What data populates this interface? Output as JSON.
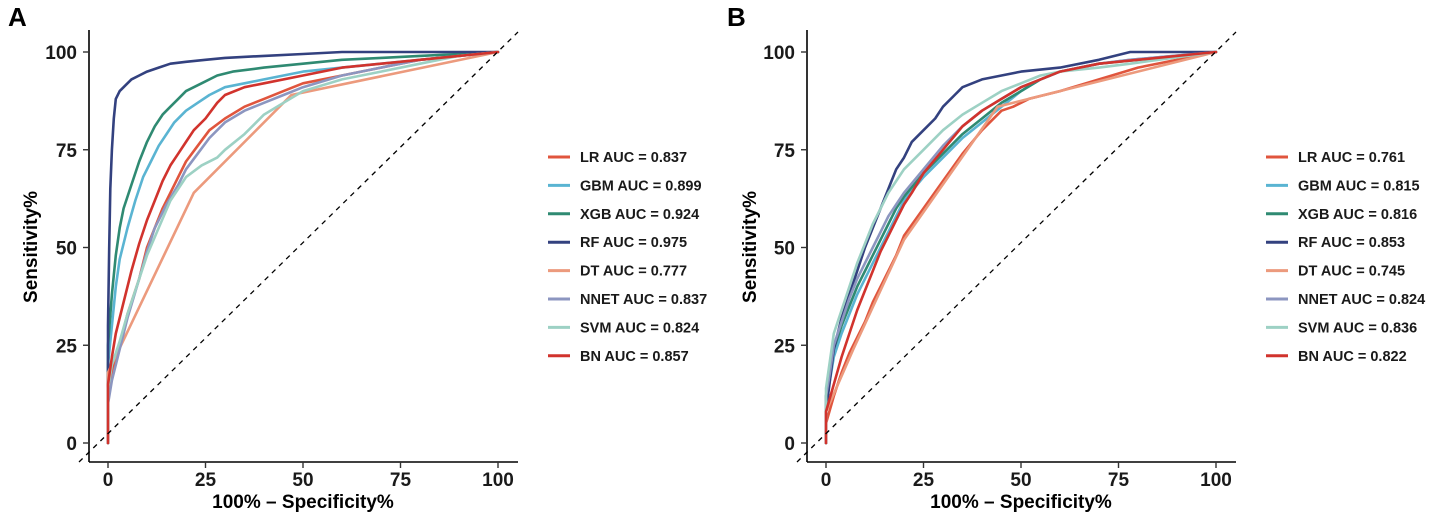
{
  "chart_data": [
    {
      "type": "line",
      "panel_label": "A",
      "xlabel": "100% – Specificity%",
      "ylabel": "Sensitivity%",
      "xlim": [
        0,
        100
      ],
      "ylim": [
        0,
        100
      ],
      "xticks": [
        0,
        25,
        50,
        75,
        100
      ],
      "yticks": [
        0,
        25,
        50,
        75,
        100
      ],
      "reference_line": "diagonal, dashed",
      "legend_position": "right",
      "series": [
        {
          "name": "LR",
          "label": "LR AUC = 0.837",
          "color": "#e0553d",
          "x": [
            0,
            0,
            1,
            3,
            5,
            8,
            10,
            12,
            14,
            16,
            18,
            20,
            23,
            26,
            30,
            35,
            40,
            45,
            50,
            60,
            70,
            80,
            90,
            100
          ],
          "y": [
            0,
            12,
            18,
            25,
            33,
            42,
            50,
            55,
            60,
            64,
            68,
            72,
            76,
            80,
            83,
            86,
            88,
            90,
            92,
            94,
            96,
            98,
            99,
            100
          ]
        },
        {
          "name": "GBM",
          "label": "GBM AUC = 0.899",
          "color": "#5ab4d2",
          "x": [
            0,
            0,
            1,
            2,
            3,
            5,
            7,
            9,
            11,
            13,
            15,
            17,
            20,
            23,
            26,
            30,
            35,
            40,
            50,
            60,
            70,
            80,
            90,
            100
          ],
          "y": [
            0,
            20,
            30,
            40,
            47,
            55,
            62,
            68,
            72,
            76,
            79,
            82,
            85,
            87,
            89,
            91,
            92,
            93,
            95,
            96,
            97,
            98,
            99,
            100
          ]
        },
        {
          "name": "XGB",
          "label": "XGB AUC = 0.924",
          "color": "#2f8a72",
          "x": [
            0,
            0,
            1,
            2,
            3,
            4,
            6,
            8,
            10,
            12,
            14,
            16,
            18,
            20,
            24,
            28,
            32,
            40,
            50,
            60,
            70,
            80,
            90,
            100
          ],
          "y": [
            0,
            25,
            38,
            48,
            55,
            60,
            66,
            72,
            77,
            81,
            84,
            86,
            88,
            90,
            92,
            94,
            95,
            96,
            97,
            98,
            98.5,
            99,
            99.5,
            100
          ]
        },
        {
          "name": "RF",
          "label": "RF AUC = 0.975",
          "color": "#33417f",
          "x": [
            0,
            0,
            0.3,
            0.6,
            1,
            1.5,
            2,
            3,
            4,
            5,
            6,
            8,
            10,
            13,
            16,
            20,
            25,
            30,
            40,
            50,
            60,
            70,
            85,
            100
          ],
          "y": [
            0,
            30,
            50,
            65,
            75,
            83,
            88,
            90,
            91,
            92,
            93,
            94,
            95,
            96,
            97,
            97.5,
            98,
            98.5,
            99,
            99.5,
            100,
            100,
            100,
            100
          ]
        },
        {
          "name": "DT",
          "label": "DT AUC = 0.777",
          "color": "#ec9a7d",
          "x": [
            0,
            0,
            22,
            47,
            100
          ],
          "y": [
            0,
            18,
            64,
            89,
            100
          ]
        },
        {
          "name": "NNET",
          "label": "NNET AUC = 0.837",
          "color": "#8c96c0",
          "x": [
            0,
            0,
            1,
            3,
            5,
            8,
            10,
            12,
            15,
            18,
            20,
            23,
            26,
            30,
            35,
            40,
            45,
            50,
            60,
            70,
            80,
            90,
            100
          ],
          "y": [
            0,
            10,
            16,
            24,
            32,
            42,
            49,
            55,
            61,
            66,
            70,
            74,
            78,
            82,
            85,
            87,
            89,
            91,
            94,
            96,
            98,
            99,
            100
          ]
        },
        {
          "name": "SVM",
          "label": "SVM AUC = 0.824",
          "color": "#9dd1c4",
          "x": [
            0,
            0,
            1,
            3,
            5,
            8,
            10,
            13,
            16,
            20,
            24,
            28,
            30,
            35,
            40,
            45,
            50,
            60,
            70,
            80,
            90,
            100
          ],
          "y": [
            0,
            14,
            20,
            26,
            33,
            42,
            48,
            55,
            62,
            68,
            71,
            73,
            75,
            79,
            84,
            87,
            90,
            93,
            95,
            97,
            99,
            100
          ]
        },
        {
          "name": "BN",
          "label": "BN AUC = 0.857",
          "color": "#d1332d",
          "x": [
            0,
            0,
            1,
            2,
            4,
            6,
            8,
            10,
            12,
            14,
            16,
            18,
            20,
            22,
            25,
            28,
            30,
            35,
            40,
            50,
            60,
            70,
            80,
            90,
            100
          ],
          "y": [
            0,
            15,
            22,
            28,
            36,
            44,
            51,
            57,
            62,
            67,
            71,
            74,
            77,
            80,
            83,
            87,
            89,
            91,
            92,
            94,
            96,
            97,
            98,
            99,
            100
          ]
        }
      ]
    },
    {
      "type": "line",
      "panel_label": "B",
      "xlabel": "100% – Specificity%",
      "ylabel": "Sensitivity%",
      "xlim": [
        0,
        100
      ],
      "ylim": [
        0,
        100
      ],
      "xticks": [
        0,
        25,
        50,
        75,
        100
      ],
      "yticks": [
        0,
        25,
        50,
        75,
        100
      ],
      "reference_line": "diagonal, dashed",
      "legend_position": "right",
      "series": [
        {
          "name": "LR",
          "label": "LR AUC = 0.761",
          "color": "#e0553d",
          "x": [
            0,
            0,
            2,
            4,
            6,
            8,
            10,
            12,
            15,
            18,
            20,
            25,
            30,
            35,
            40,
            45,
            48,
            52,
            60,
            70,
            80,
            100
          ],
          "y": [
            0,
            5,
            12,
            18,
            23,
            27,
            31,
            36,
            42,
            48,
            53,
            60,
            67,
            74,
            80,
            85,
            86,
            88,
            90,
            93,
            96,
            100
          ]
        },
        {
          "name": "GBM",
          "label": "GBM AUC = 0.815",
          "color": "#5ab4d2",
          "x": [
            0,
            0,
            1,
            2,
            4,
            6,
            8,
            10,
            12,
            14,
            16,
            18,
            20,
            25,
            30,
            35,
            40,
            45,
            50,
            55,
            60,
            70,
            78,
            100
          ],
          "y": [
            0,
            10,
            16,
            22,
            28,
            33,
            38,
            42,
            46,
            50,
            54,
            58,
            62,
            68,
            73,
            78,
            82,
            86,
            90,
            93,
            95,
            97,
            98,
            100
          ]
        },
        {
          "name": "XGB",
          "label": "XGB AUC = 0.816",
          "color": "#2f8a72",
          "x": [
            0,
            0,
            1,
            2,
            4,
            6,
            8,
            10,
            12,
            14,
            16,
            18,
            20,
            25,
            30,
            35,
            40,
            45,
            50,
            55,
            60,
            70,
            100
          ],
          "y": [
            0,
            12,
            18,
            24,
            30,
            35,
            40,
            44,
            48,
            52,
            56,
            60,
            63,
            69,
            74,
            79,
            83,
            87,
            90,
            93,
            95,
            97,
            100
          ]
        },
        {
          "name": "RF",
          "label": "RF AUC = 0.853",
          "color": "#33417f",
          "x": [
            0,
            0,
            1,
            2,
            4,
            6,
            8,
            10,
            12,
            14,
            16,
            18,
            20,
            22,
            25,
            28,
            30,
            33,
            35,
            40,
            45,
            50,
            60,
            70,
            78,
            100
          ],
          "y": [
            0,
            8,
            16,
            24,
            32,
            38,
            44,
            50,
            55,
            60,
            65,
            70,
            73,
            77,
            80,
            83,
            86,
            89,
            91,
            93,
            94,
            95,
            96,
            98,
            100,
            100
          ]
        },
        {
          "name": "DT",
          "label": "DT AUC = 0.745",
          "color": "#ec9a7d",
          "x": [
            0,
            0,
            7,
            20,
            44,
            100
          ],
          "y": [
            0,
            8,
            24,
            52,
            86,
            100
          ]
        },
        {
          "name": "NNET",
          "label": "NNET AUC = 0.824",
          "color": "#8c96c0",
          "x": [
            0,
            0,
            1,
            2,
            4,
            6,
            8,
            10,
            12,
            14,
            16,
            18,
            20,
            25,
            30,
            35,
            40,
            45,
            50,
            55,
            60,
            70,
            78,
            100
          ],
          "y": [
            0,
            12,
            18,
            25,
            31,
            37,
            42,
            46,
            50,
            54,
            58,
            61,
            64,
            70,
            76,
            81,
            85,
            88,
            91,
            93,
            95,
            97,
            98,
            100
          ]
        },
        {
          "name": "SVM",
          "label": "SVM AUC = 0.836",
          "color": "#9dd1c4",
          "x": [
            0,
            0,
            1,
            2,
            4,
            6,
            8,
            10,
            12,
            14,
            16,
            18,
            20,
            25,
            30,
            35,
            40,
            45,
            50,
            55,
            60,
            70,
            78,
            100
          ],
          "y": [
            0,
            14,
            21,
            28,
            34,
            40,
            46,
            51,
            56,
            60,
            64,
            67,
            70,
            75,
            80,
            84,
            87,
            90,
            92,
            94,
            95,
            96,
            97,
            100
          ]
        },
        {
          "name": "BN",
          "label": "BN AUC = 0.822",
          "color": "#d1332d",
          "x": [
            0,
            0,
            2,
            4,
            6,
            8,
            10,
            12,
            14,
            16,
            18,
            20,
            22,
            25,
            30,
            35,
            40,
            45,
            50,
            55,
            60,
            70,
            80,
            100
          ],
          "y": [
            0,
            8,
            15,
            22,
            28,
            34,
            39,
            44,
            49,
            53,
            57,
            61,
            64,
            69,
            75,
            81,
            85,
            88,
            91,
            93,
            95,
            97,
            98,
            100
          ]
        }
      ]
    }
  ]
}
